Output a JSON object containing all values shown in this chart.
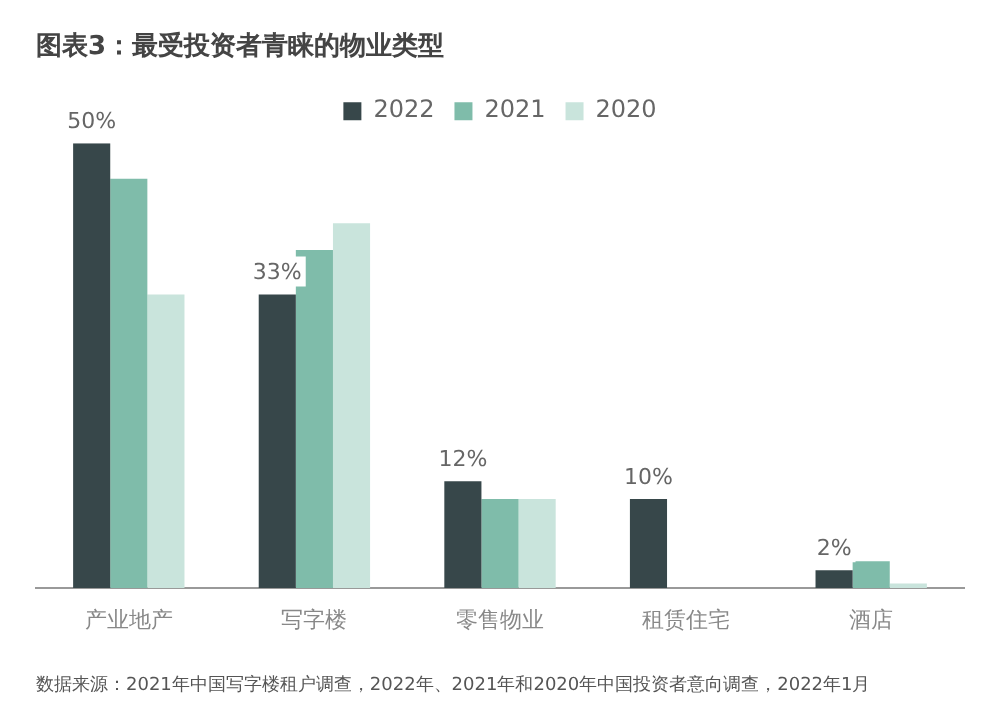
{
  "chart_data": {
    "type": "bar",
    "title": "图表3：最受投资者青睐的物业类型",
    "categories": [
      "产业地产",
      "写字楼",
      "零售物业",
      "租赁住宅",
      "酒店"
    ],
    "series": [
      {
        "name": "2022",
        "color": "#37474a",
        "values": [
          50,
          33,
          12,
          10,
          2
        ],
        "value_labels": [
          "50%",
          "33%",
          "12%",
          "10%",
          "2%"
        ]
      },
      {
        "name": "2021",
        "color": "#7fbcaa",
        "values": [
          46,
          38,
          10,
          null,
          3
        ]
      },
      {
        "name": "2020",
        "color": "#c9e4dc",
        "values": [
          33,
          41,
          10,
          null,
          0.5
        ]
      }
    ],
    "legend": "top",
    "grid": false,
    "tick_labels": "x",
    "annotations": [
      "数据来源：2021年中国写字楼租户调查，2022年、2021年和2020年中国投资者意向调查，2022年1月"
    ]
  }
}
